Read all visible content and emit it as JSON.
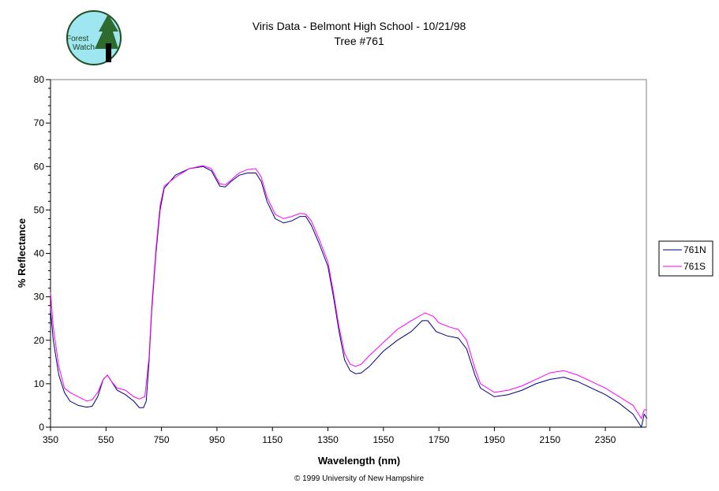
{
  "logo": {
    "text_line1": "Forest",
    "text_line2": "Watch"
  },
  "chart_data": {
    "type": "line",
    "title": "Viris Data - Belmont High School - 10/21/98",
    "subtitle": "Tree #761",
    "xlabel": "Wavelength (nm)",
    "ylabel": "% Reflectance",
    "xlim": [
      350,
      2500
    ],
    "ylim": [
      0,
      80
    ],
    "xticks": [
      350,
      550,
      750,
      950,
      1150,
      1350,
      1550,
      1750,
      1950,
      2150,
      2350
    ],
    "yticks": [
      0,
      10,
      20,
      30,
      40,
      50,
      60,
      70,
      80
    ],
    "grid": false,
    "legend_position": "right",
    "footer": "© 1999 University of New Hampshire",
    "series": [
      {
        "name": "761N",
        "color": "#000080",
        "points": [
          [
            350,
            27
          ],
          [
            360,
            20
          ],
          [
            380,
            12
          ],
          [
            400,
            8
          ],
          [
            420,
            6
          ],
          [
            450,
            5
          ],
          [
            480,
            4.6
          ],
          [
            500,
            4.8
          ],
          [
            520,
            7
          ],
          [
            540,
            11
          ],
          [
            555,
            12
          ],
          [
            570,
            10.5
          ],
          [
            590,
            8.5
          ],
          [
            620,
            7.5
          ],
          [
            650,
            6
          ],
          [
            670,
            4.5
          ],
          [
            685,
            4.5
          ],
          [
            695,
            6
          ],
          [
            705,
            15
          ],
          [
            715,
            27
          ],
          [
            730,
            40
          ],
          [
            745,
            50
          ],
          [
            760,
            55
          ],
          [
            800,
            58
          ],
          [
            850,
            59.5
          ],
          [
            900,
            60
          ],
          [
            930,
            59
          ],
          [
            960,
            55.5
          ],
          [
            980,
            55.3
          ],
          [
            1000,
            56.5
          ],
          [
            1020,
            57.5
          ],
          [
            1030,
            58
          ],
          [
            1060,
            58.5
          ],
          [
            1090,
            58.5
          ],
          [
            1110,
            56.5
          ],
          [
            1130,
            52
          ],
          [
            1160,
            48
          ],
          [
            1190,
            47
          ],
          [
            1220,
            47.5
          ],
          [
            1250,
            48.5
          ],
          [
            1270,
            48.5
          ],
          [
            1290,
            46.5
          ],
          [
            1320,
            42
          ],
          [
            1350,
            37
          ],
          [
            1370,
            30
          ],
          [
            1390,
            22
          ],
          [
            1410,
            15.5
          ],
          [
            1430,
            13
          ],
          [
            1450,
            12.3
          ],
          [
            1470,
            12.5
          ],
          [
            1500,
            14
          ],
          [
            1550,
            17.5
          ],
          [
            1600,
            20
          ],
          [
            1650,
            22
          ],
          [
            1690,
            24.5
          ],
          [
            1710,
            24.5
          ],
          [
            1740,
            22
          ],
          [
            1780,
            21
          ],
          [
            1820,
            20.5
          ],
          [
            1850,
            18
          ],
          [
            1880,
            12
          ],
          [
            1900,
            9
          ],
          [
            1950,
            7
          ],
          [
            2000,
            7.5
          ],
          [
            2050,
            8.5
          ],
          [
            2100,
            10
          ],
          [
            2150,
            11
          ],
          [
            2200,
            11.5
          ],
          [
            2250,
            10.5
          ],
          [
            2300,
            9
          ],
          [
            2350,
            7.5
          ],
          [
            2400,
            5.5
          ],
          [
            2450,
            3
          ],
          [
            2470,
            1
          ],
          [
            2480,
            0
          ],
          [
            2490,
            3
          ],
          [
            2500,
            2
          ]
        ]
      },
      {
        "name": "761S",
        "color": "#FF00FF",
        "points": [
          [
            350,
            31
          ],
          [
            360,
            23
          ],
          [
            380,
            14
          ],
          [
            400,
            9
          ],
          [
            420,
            8
          ],
          [
            450,
            7
          ],
          [
            480,
            6
          ],
          [
            500,
            6.3
          ],
          [
            520,
            8
          ],
          [
            540,
            11
          ],
          [
            555,
            12
          ],
          [
            570,
            10.5
          ],
          [
            590,
            9
          ],
          [
            620,
            8.5
          ],
          [
            650,
            7
          ],
          [
            670,
            6.5
          ],
          [
            690,
            7
          ],
          [
            705,
            16
          ],
          [
            715,
            28
          ],
          [
            730,
            41
          ],
          [
            745,
            51
          ],
          [
            760,
            55.5
          ],
          [
            800,
            57.5
          ],
          [
            850,
            59.5
          ],
          [
            900,
            60.2
          ],
          [
            930,
            59.5
          ],
          [
            960,
            56
          ],
          [
            980,
            55.8
          ],
          [
            1000,
            56.8
          ],
          [
            1020,
            58
          ],
          [
            1030,
            58.5
          ],
          [
            1060,
            59.3
          ],
          [
            1090,
            59.5
          ],
          [
            1110,
            57.5
          ],
          [
            1130,
            53
          ],
          [
            1160,
            49
          ],
          [
            1190,
            48
          ],
          [
            1220,
            48.5
          ],
          [
            1250,
            49.2
          ],
          [
            1270,
            49
          ],
          [
            1290,
            47.5
          ],
          [
            1320,
            43
          ],
          [
            1350,
            38
          ],
          [
            1370,
            31
          ],
          [
            1390,
            23
          ],
          [
            1410,
            17
          ],
          [
            1430,
            14.5
          ],
          [
            1450,
            14
          ],
          [
            1470,
            14.5
          ],
          [
            1500,
            16.5
          ],
          [
            1550,
            19.5
          ],
          [
            1600,
            22.5
          ],
          [
            1650,
            24.5
          ],
          [
            1700,
            26.3
          ],
          [
            1730,
            25.5
          ],
          [
            1750,
            24
          ],
          [
            1790,
            23
          ],
          [
            1820,
            22.5
          ],
          [
            1850,
            20
          ],
          [
            1880,
            13.5
          ],
          [
            1900,
            10
          ],
          [
            1950,
            8
          ],
          [
            2000,
            8.5
          ],
          [
            2050,
            9.5
          ],
          [
            2100,
            11
          ],
          [
            2150,
            12.5
          ],
          [
            2200,
            13
          ],
          [
            2250,
            12
          ],
          [
            2300,
            10.5
          ],
          [
            2350,
            9
          ],
          [
            2400,
            7
          ],
          [
            2450,
            5
          ],
          [
            2470,
            3
          ],
          [
            2480,
            2
          ],
          [
            2490,
            4
          ],
          [
            2500,
            4
          ]
        ]
      }
    ]
  }
}
